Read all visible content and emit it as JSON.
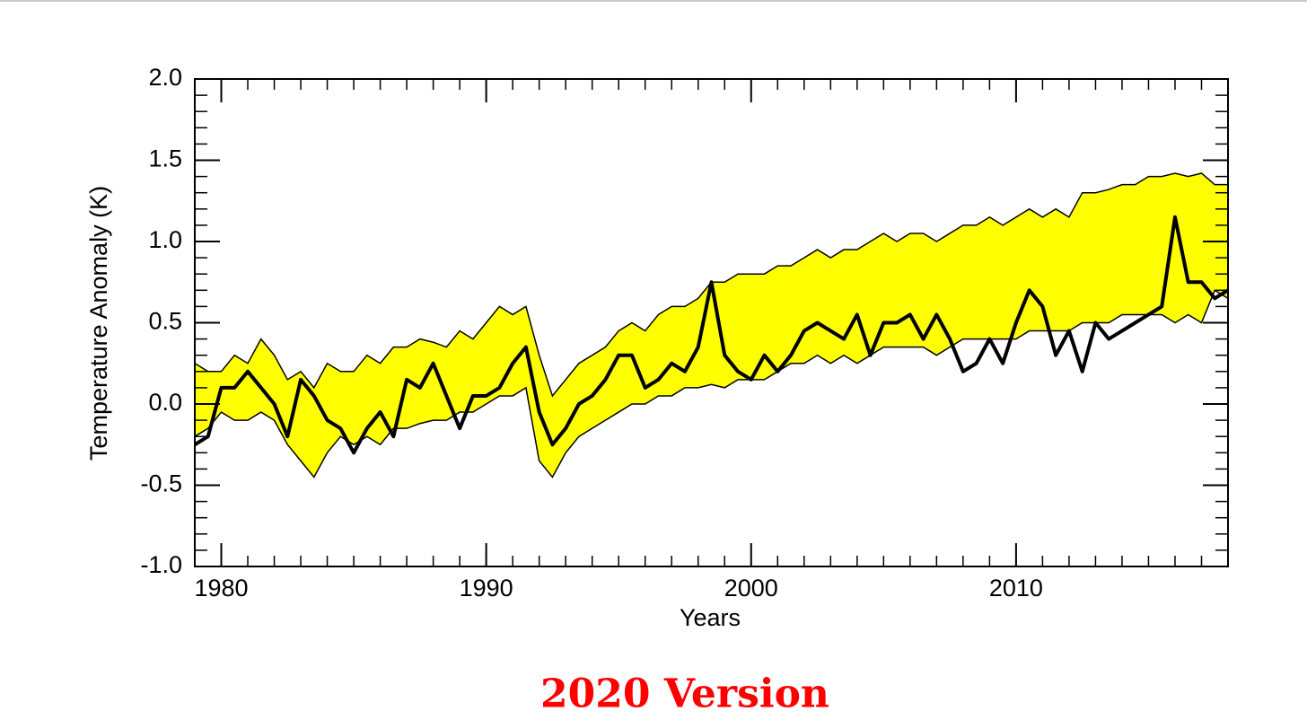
{
  "chart_data": {
    "type": "band-line",
    "title": "2020 Version",
    "xlabel": "Years",
    "ylabel": "Temperature Anomaly (K)",
    "x": [
      1979,
      1979.5,
      1980,
      1980.5,
      1981,
      1981.5,
      1982,
      1982.5,
      1983,
      1983.5,
      1984,
      1984.5,
      1985,
      1985.5,
      1986,
      1986.5,
      1987,
      1987.5,
      1988,
      1988.5,
      1989,
      1989.5,
      1990,
      1990.5,
      1991,
      1991.5,
      1992,
      1992.5,
      1993,
      1993.5,
      1994,
      1994.5,
      1995,
      1995.5,
      1996,
      1996.5,
      1997,
      1997.5,
      1998,
      1998.5,
      1999,
      1999.5,
      2000,
      2000.5,
      2001,
      2001.5,
      2002,
      2002.5,
      2003,
      2003.5,
      2004,
      2004.5,
      2005,
      2005.5,
      2006,
      2006.5,
      2007,
      2007.5,
      2008,
      2008.5,
      2009,
      2009.5,
      2010,
      2010.5,
      2011,
      2011.5,
      2012,
      2012.5,
      2013,
      2013.5,
      2014,
      2014.5,
      2015,
      2015.5,
      2016,
      2016.5,
      2017,
      2017.5,
      2018
    ],
    "band": {
      "color": "#ffff00",
      "upper": [
        0.25,
        0.2,
        0.2,
        0.3,
        0.25,
        0.4,
        0.3,
        0.15,
        0.2,
        0.1,
        0.25,
        0.2,
        0.2,
        0.3,
        0.25,
        0.35,
        0.35,
        0.4,
        0.38,
        0.35,
        0.45,
        0.4,
        0.5,
        0.6,
        0.55,
        0.6,
        0.3,
        0.05,
        0.15,
        0.25,
        0.3,
        0.35,
        0.45,
        0.5,
        0.45,
        0.55,
        0.6,
        0.6,
        0.65,
        0.75,
        0.75,
        0.8,
        0.8,
        0.8,
        0.85,
        0.85,
        0.9,
        0.95,
        0.9,
        0.95,
        0.95,
        1.0,
        1.05,
        1.0,
        1.05,
        1.05,
        1.0,
        1.05,
        1.1,
        1.1,
        1.15,
        1.1,
        1.15,
        1.2,
        1.15,
        1.2,
        1.15,
        1.3,
        1.3,
        1.32,
        1.35,
        1.35,
        1.4,
        1.4,
        1.42,
        1.4,
        1.42,
        1.35,
        1.35
      ],
      "lower": [
        -0.2,
        -0.15,
        -0.05,
        -0.1,
        -0.1,
        -0.05,
        -0.1,
        -0.25,
        -0.35,
        -0.45,
        -0.3,
        -0.2,
        -0.25,
        -0.2,
        -0.25,
        -0.15,
        -0.15,
        -0.12,
        -0.1,
        -0.1,
        -0.05,
        -0.05,
        0.0,
        0.05,
        0.05,
        0.1,
        -0.35,
        -0.45,
        -0.3,
        -0.2,
        -0.15,
        -0.1,
        -0.05,
        0.0,
        0.0,
        0.05,
        0.05,
        0.1,
        0.1,
        0.12,
        0.1,
        0.15,
        0.15,
        0.15,
        0.2,
        0.25,
        0.25,
        0.3,
        0.25,
        0.3,
        0.25,
        0.3,
        0.35,
        0.35,
        0.35,
        0.35,
        0.3,
        0.35,
        0.4,
        0.4,
        0.4,
        0.4,
        0.4,
        0.45,
        0.45,
        0.45,
        0.45,
        0.5,
        0.5,
        0.5,
        0.55,
        0.55,
        0.55,
        0.55,
        0.5,
        0.55,
        0.5,
        0.7,
        0.65
      ]
    },
    "series": [
      {
        "color": "#000000",
        "values": [
          -0.25,
          -0.2,
          0.1,
          0.1,
          0.2,
          0.1,
          0.0,
          -0.2,
          0.15,
          0.05,
          -0.1,
          -0.15,
          -0.3,
          -0.15,
          -0.05,
          -0.2,
          0.15,
          0.1,
          0.25,
          0.05,
          -0.15,
          0.05,
          0.05,
          0.1,
          0.25,
          0.35,
          -0.05,
          -0.25,
          -0.15,
          0.0,
          0.05,
          0.15,
          0.3,
          0.3,
          0.1,
          0.15,
          0.25,
          0.2,
          0.35,
          0.75,
          0.3,
          0.2,
          0.15,
          0.3,
          0.2,
          0.3,
          0.45,
          0.5,
          0.45,
          0.4,
          0.55,
          0.3,
          0.5,
          0.5,
          0.55,
          0.4,
          0.55,
          0.4,
          0.2,
          0.25,
          0.4,
          0.25,
          0.5,
          0.7,
          0.6,
          0.3,
          0.45,
          0.2,
          0.5,
          0.4,
          0.45,
          0.5,
          0.55,
          0.6,
          1.15,
          0.75,
          0.75,
          0.65,
          0.7
        ]
      }
    ],
    "xlim": [
      1979,
      2018
    ],
    "xticks": [
      1980,
      1990,
      2000,
      2010
    ],
    "ylim": [
      -1.0,
      2.0
    ],
    "yticks": [
      {
        "value": -1.0,
        "label": "-1.0"
      },
      {
        "value": -0.5,
        "label": "-0.5"
      },
      {
        "value": 0,
        "label": "0.0"
      },
      {
        "value": 0.5,
        "label": "0.5"
      },
      {
        "value": 1.0,
        "label": "1.0"
      },
      {
        "value": 1.5,
        "label": "1.5"
      },
      {
        "value": 2.0,
        "label": "2.0"
      }
    ],
    "title_color": "#ff0000"
  }
}
